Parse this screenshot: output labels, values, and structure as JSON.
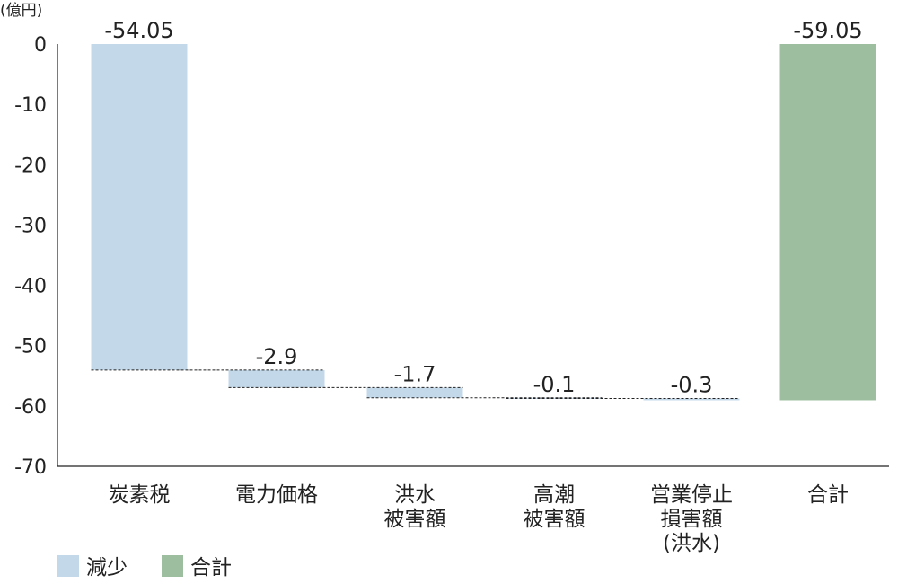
{
  "chart_data": {
    "type": "bar",
    "subtype": "waterfall",
    "unit_label": "(億円)",
    "ylim": [
      -70,
      0
    ],
    "y_ticks": [
      "0",
      "-10",
      "-20",
      "-30",
      "-40",
      "-50",
      "-60",
      "-70"
    ],
    "y_tick_values": [
      0,
      -10,
      -20,
      -30,
      -40,
      -50,
      -60,
      -70
    ],
    "categories": [
      [
        "炭素税"
      ],
      [
        "電力価格"
      ],
      [
        "洪水",
        "被害額"
      ],
      [
        "高潮",
        "被害額"
      ],
      [
        "営業停止",
        "損害額",
        "(洪水)"
      ],
      [
        "合計"
      ]
    ],
    "values": [
      -54.05,
      -2.9,
      -1.7,
      -0.1,
      -0.3,
      -59.05
    ],
    "value_labels": [
      "-54.05",
      "-2.9",
      "-1.7",
      "-0.1",
      "-0.3",
      "-59.05"
    ],
    "kinds": [
      "decrease",
      "decrease",
      "decrease",
      "decrease",
      "decrease",
      "total"
    ],
    "legend": [
      {
        "label": "減少",
        "color": "#c3d9ea"
      },
      {
        "label": "合計",
        "color": "#9dbf9f"
      }
    ],
    "colors": {
      "decrease": "#c3d9ea",
      "total": "#9dbf9f",
      "axis": "#222222"
    },
    "grid": false,
    "legend_position": "bottom-left"
  }
}
